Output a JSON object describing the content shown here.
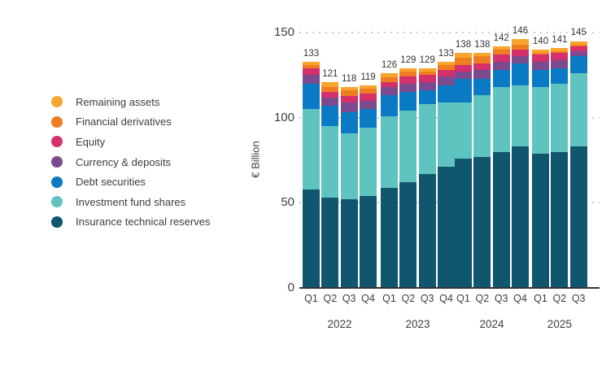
{
  "legend": {
    "items": [
      {
        "label": "Remaining assets",
        "color": "#F9A42C"
      },
      {
        "label": "Financial derivatives",
        "color": "#EF7D22"
      },
      {
        "label": "Equity",
        "color": "#D5306C"
      },
      {
        "label": "Currency & deposits",
        "color": "#7C4A8E"
      },
      {
        "label": "Debt securities",
        "color": "#0B7AC4"
      },
      {
        "label": "Investment fund shares",
        "color": "#5FC4C0"
      },
      {
        "label": "Insurance technical reserves",
        "color": "#0F566E"
      }
    ]
  },
  "chart_data": {
    "type": "bar",
    "stacked": true,
    "title": "",
    "xlabel": "",
    "ylabel": "€ Billion",
    "ylim": [
      0,
      150
    ],
    "yticks": [
      0,
      50,
      100,
      150
    ],
    "grid": "dotted-horizontal",
    "legend_position": "left",
    "groups": [
      {
        "year": "2022",
        "quarters": [
          "Q1",
          "Q2",
          "Q3",
          "Q4"
        ]
      },
      {
        "year": "2023",
        "quarters": [
          "Q1",
          "Q2",
          "Q3",
          "Q4"
        ]
      },
      {
        "year": "2024",
        "quarters": [
          "Q1",
          "Q2",
          "Q3",
          "Q4"
        ]
      },
      {
        "year": "2025",
        "quarters": [
          "Q1",
          "Q2",
          "Q3"
        ]
      }
    ],
    "categories": [
      "2022 Q1",
      "2022 Q2",
      "2022 Q3",
      "2022 Q4",
      "2023 Q1",
      "2023 Q2",
      "2023 Q3",
      "2023 Q4",
      "2024 Q1",
      "2024 Q2",
      "2024 Q3",
      "2024 Q4",
      "2025 Q1",
      "2025 Q2",
      "2025 Q3"
    ],
    "totals": [
      133,
      121,
      118,
      119,
      126,
      129,
      129,
      133,
      138,
      138,
      142,
      146,
      140,
      141,
      145
    ],
    "series": [
      {
        "name": "Remaining assets",
        "color": "#F9A42C",
        "values": [
          2,
          3,
          2,
          2,
          2,
          2,
          2,
          2,
          3,
          2,
          2,
          3,
          2,
          2,
          2
        ]
      },
      {
        "name": "Financial derivatives",
        "color": "#EF7D22",
        "values": [
          2,
          3,
          3,
          3,
          3,
          3,
          2,
          3,
          4,
          4,
          3,
          3,
          1,
          1,
          1
        ]
      },
      {
        "name": "Equity",
        "color": "#D5306C",
        "values": [
          4,
          3,
          4,
          4,
          3,
          4,
          4,
          4,
          4,
          4,
          4,
          4,
          4,
          4,
          3
        ]
      },
      {
        "name": "Currency & deposits",
        "color": "#7C4A8E",
        "values": [
          5,
          5,
          6,
          5,
          5,
          5,
          5,
          5,
          4,
          5,
          5,
          4,
          5,
          5,
          3
        ]
      },
      {
        "name": "Debt securities",
        "color": "#0B7AC4",
        "values": [
          15,
          12,
          12,
          11,
          12,
          11,
          8,
          10,
          14,
          10,
          10,
          13,
          10,
          9,
          10
        ]
      },
      {
        "name": "Investment fund shares",
        "color": "#5FC4C0",
        "values": [
          47,
          42,
          39,
          40,
          42,
          42,
          41,
          38,
          33,
          36,
          38,
          36,
          39,
          40,
          43
        ]
      },
      {
        "name": "Insurance technical reserves",
        "color": "#0F566E",
        "values": [
          58,
          53,
          52,
          54,
          59,
          62,
          67,
          71,
          76,
          77,
          80,
          83,
          79,
          80,
          83
        ]
      }
    ],
    "series_note": "series listed top-of-stack first; stacking bottom-to-top is reverse order"
  }
}
